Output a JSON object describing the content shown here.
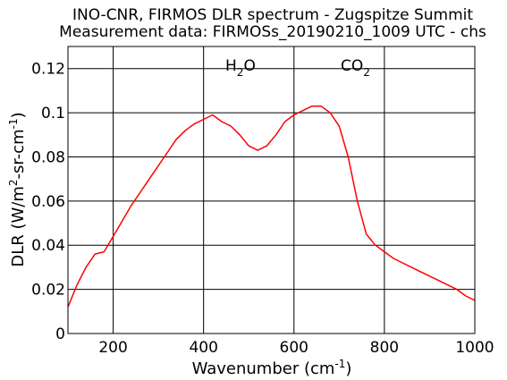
{
  "chart_data": {
    "type": "line",
    "title": "INO-CNR, FIRMOS DLR spectrum - Zugspitze Summit",
    "subtitle": "Measurement data: FIRMOSs_20190210_1009 UTC - chs",
    "xlabel": {
      "base": "Wavenumber (cm",
      "sup": "-1",
      "tail": ")"
    },
    "ylabel": {
      "p1": "DLR (W/m",
      "sup1": "2",
      "p2": "-sr-cm",
      "sup2": "-1",
      "p3": ")"
    },
    "xlim": [
      100,
      1000
    ],
    "ylim": [
      0,
      0.13
    ],
    "xticks": [
      200,
      400,
      600,
      800,
      1000
    ],
    "xtick_labels": [
      "200",
      "400",
      "600",
      "800",
      "1000"
    ],
    "yticks": [
      0,
      0.02,
      0.04,
      0.06,
      0.08,
      0.1,
      0.12
    ],
    "ytick_labels": [
      "0",
      "0.02",
      "0.04",
      "0.06",
      "0.08",
      "0.1",
      "0.12"
    ],
    "grid": true,
    "line_color": "#ff0000",
    "annotations": [
      {
        "x": 493,
        "y": 0.125,
        "base": "H",
        "sub": "2",
        "tail": "O"
      },
      {
        "x": 693,
        "y": 0.125,
        "base": "CO",
        "sub": "2",
        "tail": ""
      }
    ],
    "series": [
      {
        "x": [
          100,
          120,
          140,
          160,
          180,
          200,
          220,
          240,
          260,
          280,
          300,
          320,
          340,
          360,
          380,
          400,
          420,
          440,
          460,
          480,
          500,
          520,
          540,
          560,
          580,
          600,
          620,
          640,
          660,
          680,
          700,
          720,
          740,
          760,
          780,
          800,
          820,
          840,
          860,
          880,
          900,
          920,
          940,
          960,
          980,
          1000
        ],
        "y": [
          0.012,
          0.022,
          0.03,
          0.036,
          0.037,
          0.044,
          0.051,
          0.058,
          0.064,
          0.07,
          0.076,
          0.082,
          0.088,
          0.092,
          0.095,
          0.097,
          0.099,
          0.096,
          0.094,
          0.09,
          0.085,
          0.083,
          0.085,
          0.09,
          0.096,
          0.099,
          0.101,
          0.103,
          0.103,
          0.1,
          0.094,
          0.08,
          0.06,
          0.045,
          0.04,
          0.037,
          0.034,
          0.032,
          0.03,
          0.028,
          0.026,
          0.024,
          0.022,
          0.02,
          0.017,
          0.015
        ]
      }
    ]
  }
}
